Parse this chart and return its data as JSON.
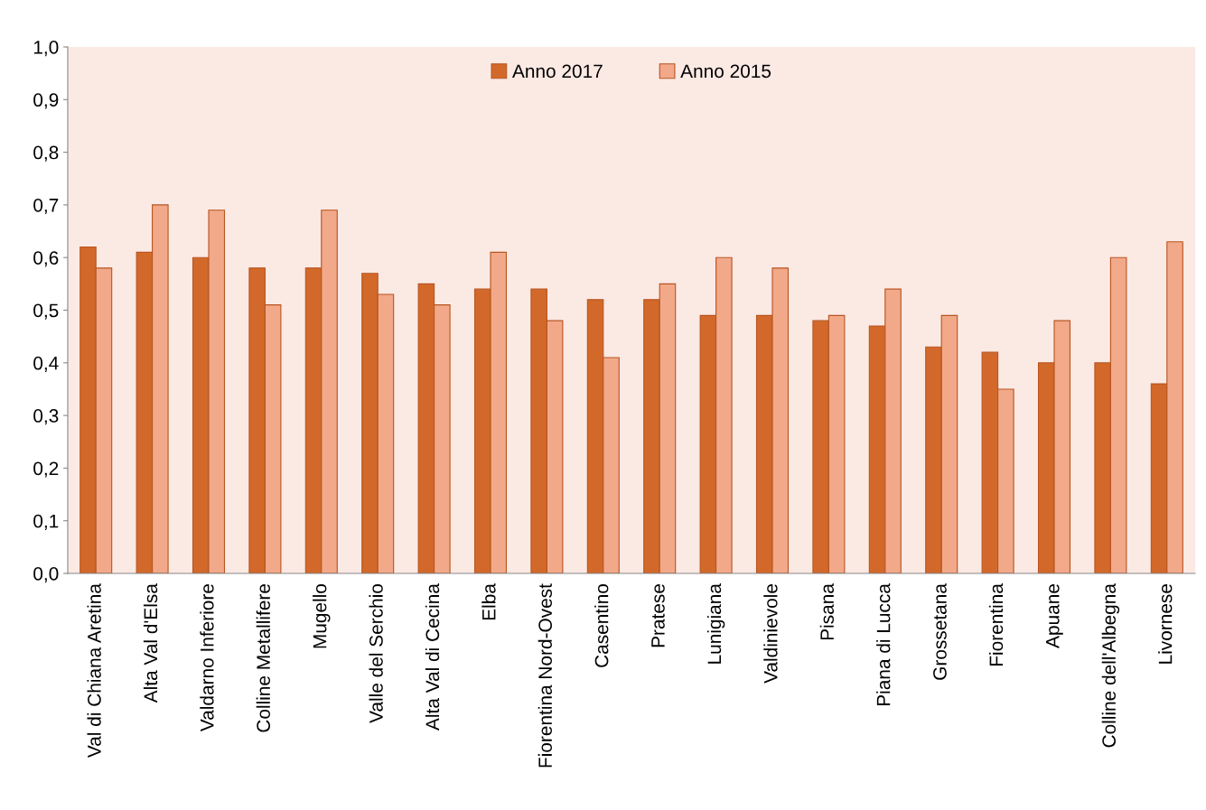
{
  "chart_data": {
    "type": "bar",
    "categories": [
      "Val di Chiana Aretina",
      "Alta Val d'Elsa",
      "Valdarno Inferiore",
      "Colline Metallifere",
      "Mugello",
      "Valle del Serchio",
      "Alta Val di Cecina",
      "Elba",
      "Fiorentina Nord-Ovest",
      "Casentino",
      "Pratese",
      "Lunigiana",
      "Valdinievole",
      "Pisana",
      "Piana di Lucca",
      "Grossetana",
      "Fiorentina",
      "Apuane",
      "Colline dell'Albegna",
      "Livornese"
    ],
    "series": [
      {
        "name": "Anno 2017",
        "color": "#d2692a",
        "values": [
          0.62,
          0.61,
          0.6,
          0.58,
          0.58,
          0.57,
          0.55,
          0.54,
          0.54,
          0.52,
          0.52,
          0.49,
          0.49,
          0.48,
          0.47,
          0.43,
          0.42,
          0.4,
          0.4,
          0.36
        ]
      },
      {
        "name": "Anno 2015",
        "color": "#f2a98a",
        "values": [
          0.58,
          0.7,
          0.69,
          0.51,
          0.69,
          0.53,
          0.51,
          0.61,
          0.48,
          0.41,
          0.55,
          0.6,
          0.58,
          0.49,
          0.54,
          0.49,
          0.35,
          0.48,
          0.6,
          0.63
        ]
      }
    ],
    "ylim": [
      0,
      1.0
    ],
    "yticks": [
      {
        "value": 0,
        "label": "0,0"
      },
      {
        "value": 0.1,
        "label": "0,1"
      },
      {
        "value": 0.2,
        "label": "0,2"
      },
      {
        "value": 0.3,
        "label": "0,3"
      },
      {
        "value": 0.4,
        "label": "0,4"
      },
      {
        "value": 0.5,
        "label": "0,5"
      },
      {
        "value": 0.6,
        "label": "0,6"
      },
      {
        "value": 0.7,
        "label": "0,7"
      },
      {
        "value": 0.8,
        "label": "0,8"
      },
      {
        "value": 0.9,
        "label": "0,9"
      },
      {
        "value": 1.0,
        "label": "1,0"
      }
    ],
    "grid": false,
    "legend": "top"
  }
}
